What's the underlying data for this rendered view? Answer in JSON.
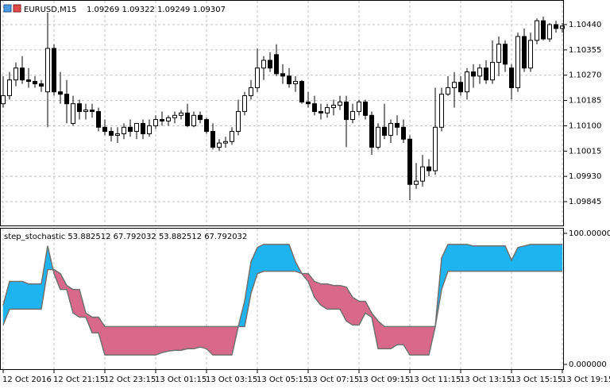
{
  "chart_data": [
    {
      "type": "candlestick",
      "title": "EURUSD,M15",
      "subtitle": "1.09269 1.09322 1.09249 1.09307",
      "categories": [
        "12 Oct 2016",
        null,
        null,
        null,
        null,
        null,
        null,
        null,
        "12 Oct 21:15",
        null,
        null,
        null,
        null,
        null,
        null,
        null,
        "12 Oct 23:15",
        null,
        null,
        null,
        null,
        null,
        null,
        null,
        "13 Oct 01:15",
        null,
        null,
        null,
        null,
        null,
        null,
        null,
        "13 Oct 03:15",
        null,
        null,
        null,
        null,
        null,
        null,
        null,
        "13 Oct 05:15",
        null,
        null,
        null,
        null,
        null,
        null,
        null,
        "13 Oct 07:15",
        null,
        null,
        null,
        null,
        null,
        null,
        null,
        "13 Oct 09:15",
        null,
        null,
        null,
        null,
        null,
        null,
        null,
        "13 Oct 11:15",
        null,
        null,
        null,
        null,
        null,
        null,
        null,
        "13 Oct 13:15",
        null,
        null,
        null,
        null,
        null,
        null,
        null,
        "13 Oct 15:15",
        null,
        null,
        null,
        null,
        null,
        null,
        null,
        "13 Oct 19:15"
      ],
      "open": [
        1.10174,
        1.10201,
        1.10254,
        1.10294,
        1.10254,
        1.10249,
        1.10241,
        1.10214,
        1.1036,
        1.10214,
        1.10206,
        1.10108,
        1.10174,
        1.10148,
        1.10153,
        1.10148,
        1.10095,
        1.10081,
        1.10068,
        1.10073,
        1.10095,
        1.10081,
        1.10108,
        1.10073,
        1.101,
        1.10121,
        1.10116,
        1.10127,
        1.10135,
        1.10143,
        1.101,
        1.10135,
        1.10121,
        1.10081,
        1.10028,
        1.10042,
        1.10047,
        1.10081,
        1.10148,
        1.10201,
        1.10228,
        1.10294,
        1.1032,
        1.10339,
        1.10275,
        1.10267,
        1.10241,
        1.10249,
        1.1018,
        1.10174,
        1.10148,
        1.10143,
        1.10161,
        1.10169,
        1.1018,
        1.10121,
        1.10148,
        1.1018,
        1.10135,
        1.10028,
        1.10095,
        1.10068,
        1.10108,
        1.10095,
        1.10055,
        1.09903,
        1.09914,
        1.09962,
        1.09949,
        1.10095,
        1.10206,
        1.10228,
        1.10246,
        1.10214,
        1.10281,
        1.10267,
        1.10294,
        1.10254,
        1.10313,
        1.10374,
        1.10294,
        1.10228,
        1.104,
        1.10294,
        1.10387,
        1.10453,
        1.10392,
        1.1044,
        1.10427
      ],
      "high": [
        1.10267,
        1.10281,
        1.10313,
        1.10334,
        1.10294,
        1.10267,
        1.10254,
        1.1048,
        1.10374,
        1.10281,
        1.10254,
        1.10201,
        1.10188,
        1.10174,
        1.10174,
        1.10161,
        1.10121,
        1.10095,
        1.10095,
        1.10108,
        1.10121,
        1.10108,
        1.10121,
        1.10121,
        1.10135,
        1.10148,
        1.10135,
        1.10148,
        1.10153,
        1.10174,
        1.10148,
        1.10148,
        1.10127,
        1.10108,
        1.10055,
        1.10063,
        1.10095,
        1.10188,
        1.10214,
        1.10254,
        1.1036,
        1.10334,
        1.10347,
        1.10374,
        1.10307,
        1.10294,
        1.10267,
        1.10254,
        1.10214,
        1.10201,
        1.10174,
        1.10174,
        1.10188,
        1.10201,
        1.10201,
        1.10174,
        1.10188,
        1.10188,
        1.10148,
        1.10108,
        1.10174,
        1.10121,
        1.10135,
        1.10121,
        1.10068,
        1.09975,
        1.10002,
        1.09988,
        1.10228,
        1.10228,
        1.10267,
        1.10281,
        1.10267,
        1.10294,
        1.10307,
        1.10307,
        1.1032,
        1.10387,
        1.104,
        1.10387,
        1.10307,
        1.10413,
        1.10427,
        1.10413,
        1.10461,
        1.10467,
        1.10445,
        1.10453,
        1.10445
      ],
      "low": [
        1.10161,
        1.10188,
        1.10233,
        1.10241,
        1.10228,
        1.10228,
        1.10214,
        1.10095,
        1.10201,
        1.10174,
        1.10108,
        1.101,
        1.10121,
        1.10121,
        1.10127,
        1.10081,
        1.10068,
        1.10047,
        1.10042,
        1.10055,
        1.10063,
        1.10055,
        1.10055,
        1.10063,
        1.10089,
        1.101,
        1.101,
        1.10108,
        1.10121,
        1.10095,
        1.10095,
        1.10108,
        1.10073,
        1.1002,
        1.10015,
        1.10026,
        1.10036,
        1.10068,
        1.10135,
        1.10188,
        1.10214,
        1.10254,
        1.10281,
        1.10267,
        1.10241,
        1.10228,
        1.10214,
        1.10174,
        1.10161,
        1.10135,
        1.10121,
        1.10127,
        1.10135,
        1.10153,
        1.10028,
        1.10108,
        1.10135,
        1.10121,
        1.10002,
        1.1002,
        1.10055,
        1.10042,
        1.10068,
        1.10042,
        1.0985,
        1.09888,
        1.09896,
        1.0993,
        1.09935,
        1.10081,
        1.10201,
        1.10161,
        1.10201,
        1.10188,
        1.10228,
        1.10241,
        1.10241,
        1.10241,
        1.10267,
        1.10281,
        1.10188,
        1.10214,
        1.10281,
        1.10281,
        1.10374,
        1.10387,
        1.10382,
        1.10413,
        1.10413
      ],
      "close": [
        1.10201,
        1.10254,
        1.10294,
        1.10254,
        1.10249,
        1.10241,
        1.10233,
        1.1036,
        1.10214,
        1.10206,
        1.10174,
        1.10174,
        1.10148,
        1.10153,
        1.10148,
        1.10095,
        1.10081,
        1.10068,
        1.10073,
        1.10095,
        1.10081,
        1.10108,
        1.10073,
        1.101,
        1.10121,
        1.10116,
        1.10127,
        1.10135,
        1.10143,
        1.101,
        1.10135,
        1.10121,
        1.10081,
        1.10028,
        1.10042,
        1.10047,
        1.10081,
        1.10148,
        1.10201,
        1.10228,
        1.10294,
        1.1032,
        1.10294,
        1.10275,
        1.10267,
        1.10241,
        1.10249,
        1.1018,
        1.10174,
        1.10148,
        1.10143,
        1.10161,
        1.10169,
        1.1018,
        1.10121,
        1.10148,
        1.1018,
        1.10135,
        1.10028,
        1.10095,
        1.10068,
        1.10108,
        1.10095,
        1.10055,
        1.09903,
        1.09914,
        1.09962,
        1.09949,
        1.10095,
        1.10206,
        1.10228,
        1.10246,
        1.10214,
        1.10281,
        1.10267,
        1.10294,
        1.10254,
        1.10313,
        1.10374,
        1.10307,
        1.10228,
        1.104,
        1.10294,
        1.10387,
        1.10453,
        1.10392,
        1.1044,
        1.10427,
        1.10435
      ],
      "up_color": "#ffffff",
      "down_color": "#000000",
      "wick_color": "#000000",
      "ylim": [
        1.09765,
        1.1052
      ],
      "yticks": [
        {
          "value": 1.1044,
          "label": "1.10440"
        },
        1.10355,
        {
          "value": 1.1027,
          "label": "1.10270"
        },
        1.10185,
        {
          "value": 1.101,
          "label": "1.10100"
        },
        1.10015,
        {
          "value": 1.0993,
          "label": "1.09930"
        },
        1.09845
      ],
      "grid": true
    },
    {
      "type": "line",
      "title": "step_stochastic 53.882512 67.792032 53.882512 67.792032",
      "series": [
        {
          "color": "#707070",
          "values": [
            45.2,
            63.3,
            63.3,
            63.3,
            61.4,
            61.4,
            61.4,
            90.4,
            69.3,
            57.2,
            57.2,
            39.2,
            36.1,
            36.1,
            24.1,
            24.1,
            7.2,
            7.2,
            7.2,
            7.2,
            7.2,
            7.2,
            7.2,
            7.2,
            7.2,
            9.0,
            10.2,
            10.8,
            10.8,
            12.0,
            12.0,
            13.3,
            12.0,
            7.2,
            7.2,
            7.2,
            7.2,
            28.9,
            48.2,
            78.3,
            89.2,
            91.6,
            91.6,
            91.6,
            91.6,
            91.6,
            78.3,
            69.3,
            63.3,
            51.2,
            45.2,
            42.2,
            42.2,
            42.2,
            33.1,
            30.1,
            30.1,
            39.2,
            36.1,
            12.0,
            12.0,
            12.0,
            15.1,
            15.1,
            7.2,
            7.2,
            7.2,
            7.2,
            28.9,
            81.3,
            91.6,
            91.6,
            91.6,
            91.6,
            90.4,
            90.4,
            90.4,
            90.4,
            90.4,
            90.4,
            79.5,
            89.2,
            90.4,
            91.6,
            91.6,
            91.6,
            91.6,
            91.6,
            91.6
          ]
        },
        {
          "color": "#707070",
          "values": [
            30.1,
            42.2,
            42.2,
            42.2,
            42.2,
            42.2,
            42.2,
            72.3,
            72.3,
            69.3,
            60.2,
            57.2,
            57.2,
            39.2,
            36.1,
            36.1,
            28.9,
            28.9,
            28.9,
            28.9,
            28.9,
            28.9,
            28.9,
            28.9,
            28.9,
            28.9,
            28.9,
            28.9,
            28.9,
            28.9,
            28.9,
            28.9,
            28.9,
            28.9,
            28.9,
            28.9,
            28.9,
            28.9,
            28.9,
            54.2,
            69.3,
            71.1,
            71.1,
            71.1,
            71.1,
            71.1,
            71.1,
            69.3,
            69.3,
            63.3,
            61.4,
            61.4,
            60.2,
            60.2,
            59.0,
            51.2,
            48.2,
            48.2,
            39.2,
            33.1,
            28.9,
            28.9,
            28.9,
            28.9,
            28.9,
            28.9,
            28.9,
            28.9,
            28.9,
            57.2,
            71.1,
            71.1,
            71.1,
            71.1,
            71.1,
            71.1,
            71.1,
            71.1,
            71.1,
            71.1,
            71.1,
            71.1,
            71.1,
            71.1,
            71.1,
            71.1,
            71.1,
            71.1,
            71.1
          ]
        }
      ],
      "up_color": "#1eb4f0",
      "down_color": "#d9698c",
      "ylim": [
        -3.6,
        103.6
      ],
      "yticks": [
        {
          "value": 100,
          "label": "100.000000"
        },
        {
          "value": 0,
          "label": "0.000000"
        }
      ]
    }
  ]
}
